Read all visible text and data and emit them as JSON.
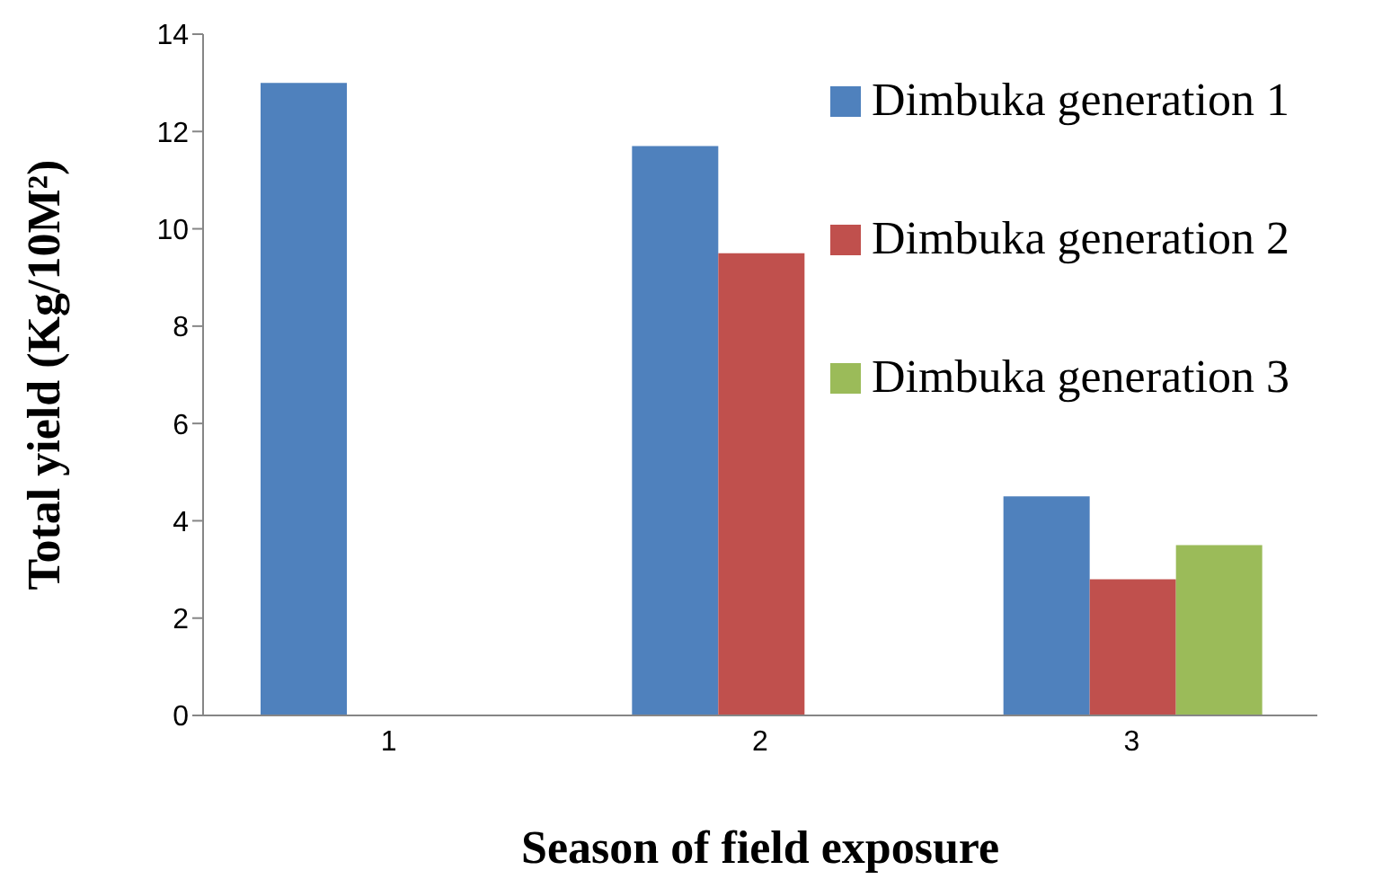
{
  "chart_data": {
    "type": "bar",
    "xlabel": "Season of field exposure",
    "ylabel": "Total yield (Kg/10M²)",
    "categories": [
      "1",
      "2",
      "3"
    ],
    "series": [
      {
        "name": "Dimbuka generation 1",
        "color": "#4f81bd",
        "values": [
          13,
          11.7,
          4.5
        ]
      },
      {
        "name": "Dimbuka generation 2",
        "color": "#c0504d",
        "values": [
          null,
          9.5,
          2.8
        ]
      },
      {
        "name": "Dimbuka generation 3",
        "color": "#9bbb59",
        "values": [
          null,
          null,
          3.5
        ]
      }
    ],
    "ylim": [
      0,
      14
    ],
    "yticks": [
      0,
      2,
      4,
      6,
      8,
      10,
      12,
      14
    ],
    "grid": false,
    "legend": "top right"
  }
}
